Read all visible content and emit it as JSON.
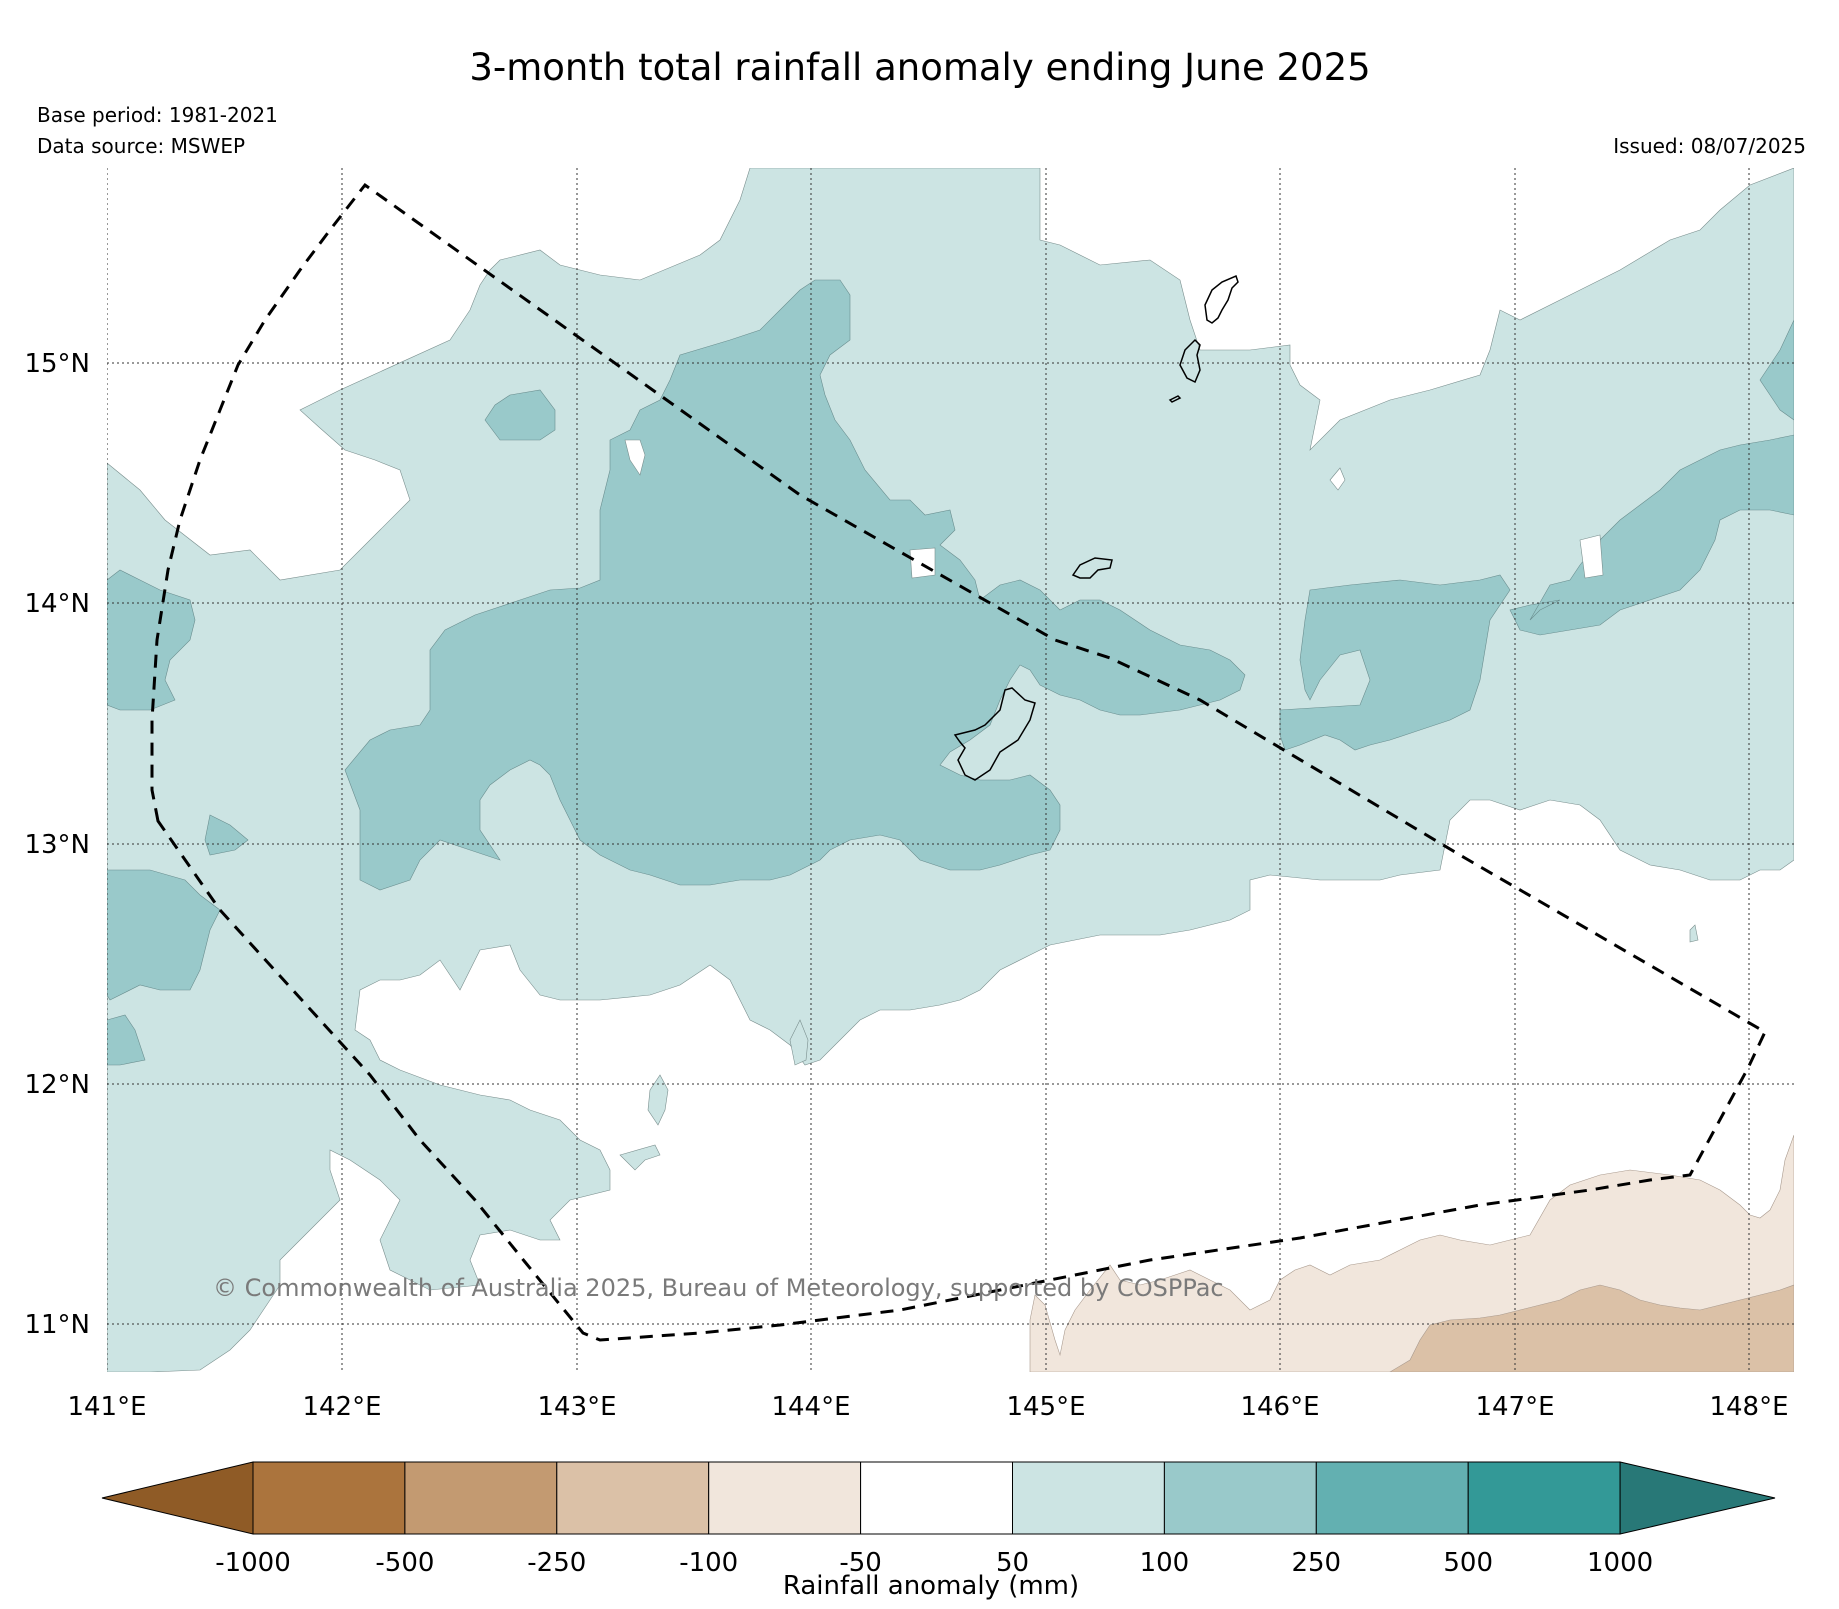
{
  "title": "3-month total rainfall anomaly ending June 2025",
  "base_period": "Base period: 1981-2021",
  "data_source": "Data source: MSWEP",
  "issued": "Issued: 08/07/2025",
  "credit": "© Commonwealth of Australia 2025, Bureau of Meteorology, supported by COSPPac",
  "map": {
    "lon_ticks": [
      "141°E",
      "142°E",
      "143°E",
      "144°E",
      "145°E",
      "146°E",
      "147°E",
      "148°E"
    ],
    "lat_ticks": [
      "15°N",
      "14°N",
      "13°N",
      "12°N",
      "11°N"
    ],
    "extent": {
      "lon": [
        141.0,
        148.2
      ],
      "lat": [
        10.8,
        15.8
      ]
    },
    "grid": true
  },
  "colorbar": {
    "label": "Rainfall anomaly (mm)",
    "tick_labels": [
      "-1000",
      "-500",
      "-250",
      "-100",
      "-50",
      "50",
      "100",
      "250",
      "500",
      "1000"
    ],
    "colors": [
      "#8f5b26",
      "#ab743d",
      "#c39a71",
      "#dbc1a7",
      "#f1e6dc",
      "#ffffff",
      "#cce4e3",
      "#99c9ca",
      "#63b0b1",
      "#339997",
      "#287877"
    ],
    "extend": "both"
  },
  "colors": {
    "fill_50_100": "#cce4e3",
    "fill_100_250": "#99c9ca",
    "fill_neg_50_100": "#f1e6dc",
    "fill_neg_100_250": "#dbc1a7"
  }
}
